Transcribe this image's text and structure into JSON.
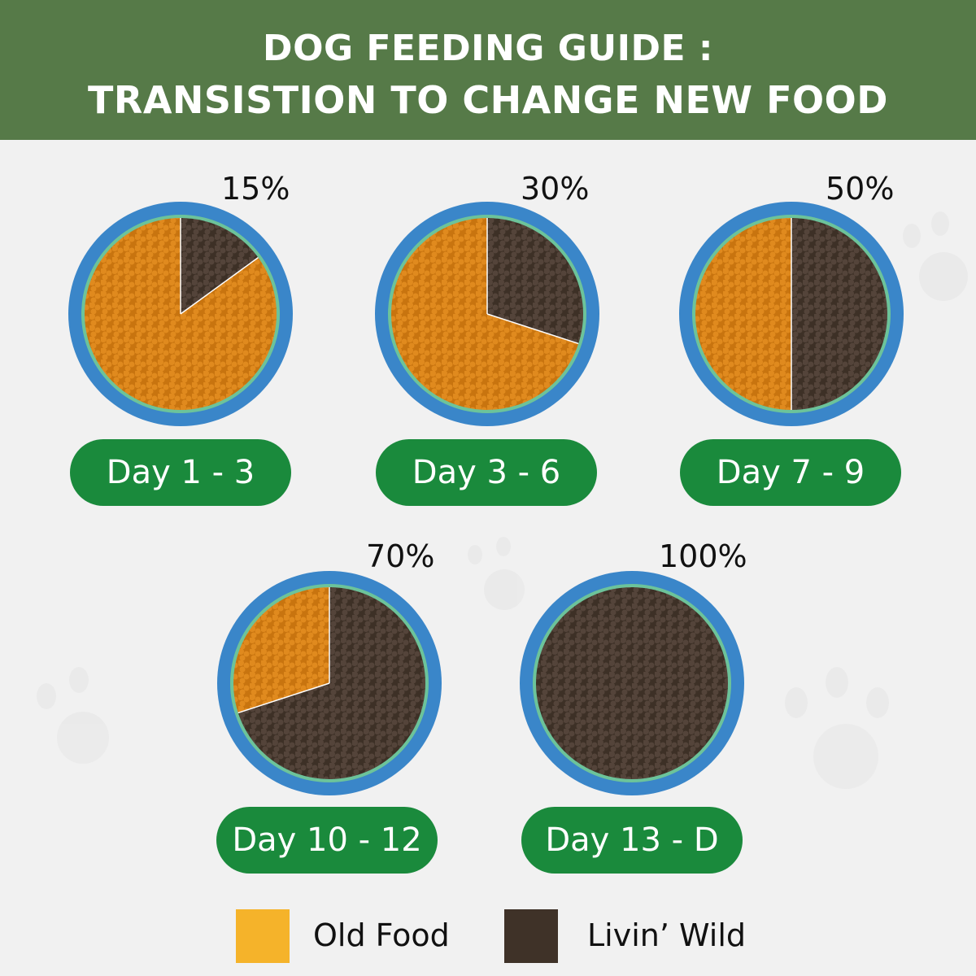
{
  "header": {
    "line1": "DOG FEEDING GUIDE :",
    "line2": "TRANSISTION TO CHANGE NEW FOOD"
  },
  "stages": [
    {
      "percent_label": "15%",
      "new_food_fraction": 0.15,
      "day_label": "Day 1 - 3"
    },
    {
      "percent_label": "30%",
      "new_food_fraction": 0.3,
      "day_label": "Day 3 - 6"
    },
    {
      "percent_label": "50%",
      "new_food_fraction": 0.5,
      "day_label": "Day 7 - 9"
    },
    {
      "percent_label": "70%",
      "new_food_fraction": 0.7,
      "day_label": "Day 10 - 12"
    },
    {
      "percent_label": "100%",
      "new_food_fraction": 1.0,
      "day_label": "Day 13 - D"
    }
  ],
  "legend": {
    "old_food": {
      "label": "Old Food",
      "color": "#f5b32a"
    },
    "new_food": {
      "label": "Livin’ Wild",
      "color": "#3f3228"
    }
  },
  "colors": {
    "header_bg": "#567a48",
    "pill_bg": "#1a8a3c",
    "bowl_rim": "#3a86c9",
    "bowl_inner": "#6cc39a",
    "old_food": "#c8740f",
    "new_food": "#3d3026"
  }
}
